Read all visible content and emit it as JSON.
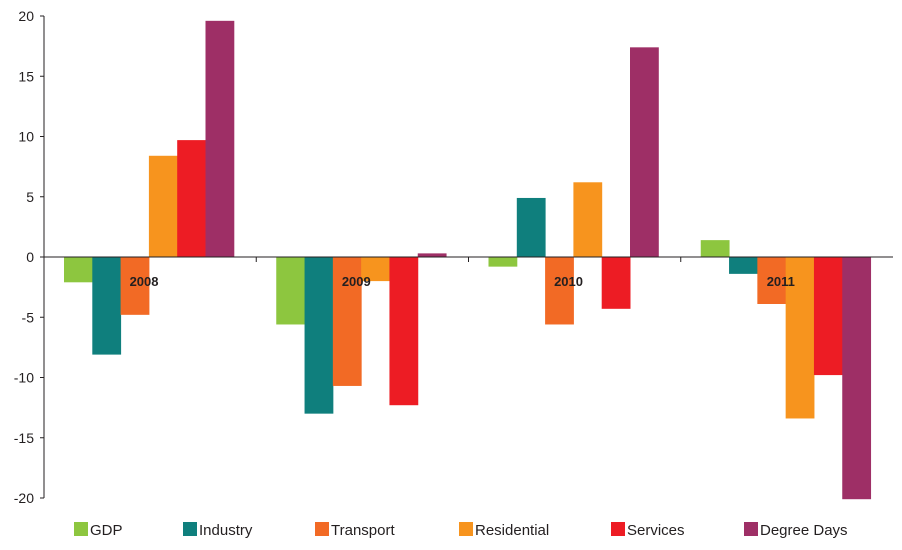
{
  "chart_data": {
    "type": "bar",
    "categories": [
      "2008",
      "2009",
      "2010",
      "2011"
    ],
    "series": [
      {
        "name": "GDP",
        "color": "#8dc63f",
        "values": [
          -2.1,
          -5.6,
          -0.8,
          1.4
        ]
      },
      {
        "name": "Industry",
        "color": "#0f7f7d",
        "values": [
          -8.1,
          -13.0,
          4.9,
          -1.4
        ]
      },
      {
        "name": "Transport",
        "color": "#f26a25",
        "values": [
          -4.8,
          -10.7,
          -5.6,
          -3.9
        ]
      },
      {
        "name": "Residential",
        "color": "#f7941e",
        "values": [
          8.4,
          -2.0,
          6.2,
          -13.4
        ]
      },
      {
        "name": "Services",
        "color": "#ed1c24",
        "values": [
          9.7,
          -12.3,
          -4.3,
          -9.8
        ]
      },
      {
        "name": "Degree Days",
        "color": "#9e2f66",
        "values": [
          19.6,
          0.3,
          17.4,
          -20.1
        ]
      }
    ],
    "yticks": [
      20,
      15,
      10,
      5,
      0,
      -5,
      -10,
      -15,
      -20
    ],
    "ylim": [
      -20,
      20
    ],
    "legend_position": "bottom",
    "grid": false
  }
}
